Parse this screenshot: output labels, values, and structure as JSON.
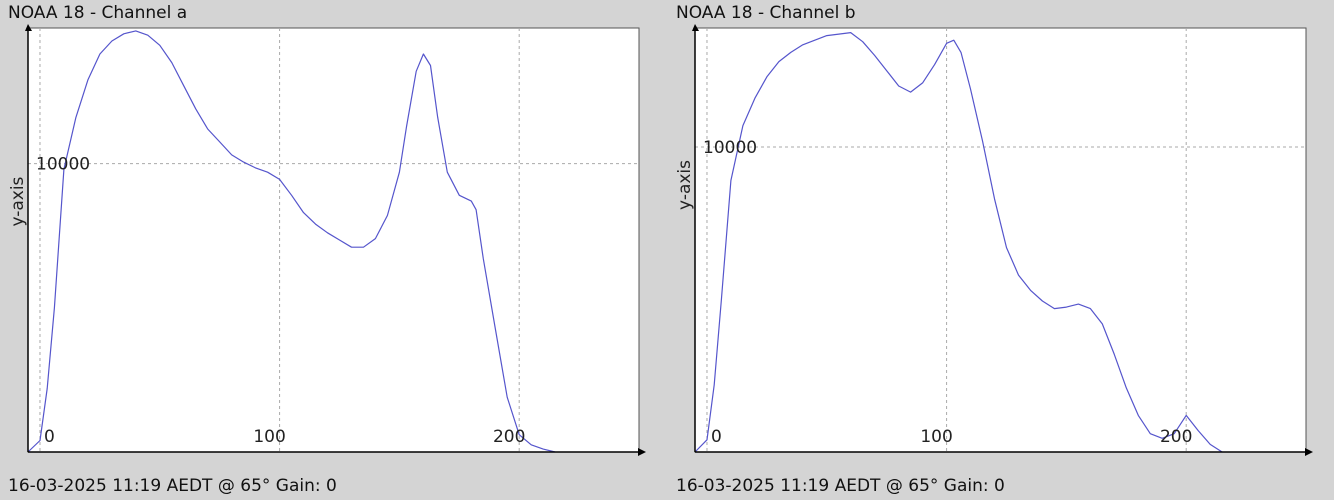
{
  "colors": {
    "background": "#d4d4d4",
    "plot_background": "#ffffff",
    "series_line": "#5555cc",
    "grid": "#aaaaaa",
    "axis": "#000000"
  },
  "chart_data": [
    {
      "type": "line",
      "title": "NOAA 18 - Channel a",
      "footer": "16-03-2025 11:19 AEDT @ 65° Gain: 0",
      "xlabel": "",
      "ylabel": "y-axis",
      "xlim": [
        -5,
        250
      ],
      "ylim": [
        0,
        14700
      ],
      "grid": true,
      "xticks": [
        0,
        100,
        200
      ],
      "xtick_labels": [
        "0",
        "100",
        "200"
      ],
      "yticks": [
        10000
      ],
      "ytick_labels": [
        "10000"
      ],
      "series": [
        {
          "x": [
            -5,
            0,
            3,
            6,
            10,
            15,
            20,
            25,
            30,
            35,
            40,
            45,
            50,
            55,
            60,
            65,
            70,
            75,
            80,
            85,
            90,
            95,
            100,
            105,
            110,
            115,
            120,
            125,
            130,
            135,
            140,
            145,
            150,
            153,
            157,
            160,
            163,
            166,
            170,
            175,
            180,
            182,
            185,
            190,
            195,
            200,
            205,
            210,
            215
          ],
          "y": [
            0,
            400,
            2200,
            5000,
            9800,
            11600,
            12900,
            13800,
            14250,
            14500,
            14600,
            14450,
            14100,
            13500,
            12700,
            11900,
            11200,
            10750,
            10300,
            10050,
            9850,
            9700,
            9450,
            8900,
            8300,
            7900,
            7600,
            7350,
            7100,
            7100,
            7400,
            8200,
            9700,
            11300,
            13200,
            13800,
            13400,
            11600,
            9700,
            8900,
            8700,
            8400,
            6700,
            4300,
            1900,
            600,
            250,
            100,
            0
          ]
        }
      ]
    },
    {
      "type": "line",
      "title": "NOAA 18 - Channel b",
      "footer": "16-03-2025 11:19 AEDT @ 65° Gain: 0",
      "xlabel": "",
      "ylabel": "y-axis",
      "xlim": [
        -5,
        250
      ],
      "ylim": [
        0,
        13900
      ],
      "grid": true,
      "xticks": [
        0,
        100,
        200
      ],
      "xtick_labels": [
        "0",
        "100",
        "200"
      ],
      "yticks": [
        10000
      ],
      "ytick_labels": [
        "10000"
      ],
      "series": [
        {
          "x": [
            -5,
            0,
            3,
            6,
            10,
            15,
            20,
            25,
            30,
            35,
            40,
            45,
            50,
            55,
            60,
            65,
            70,
            75,
            80,
            85,
            90,
            95,
            100,
            103,
            106,
            110,
            115,
            120,
            125,
            130,
            135,
            140,
            145,
            150,
            155,
            160,
            165,
            170,
            175,
            180,
            185,
            190,
            195,
            200,
            205,
            210,
            215
          ],
          "y": [
            0,
            400,
            2200,
            5000,
            8900,
            10700,
            11600,
            12300,
            12800,
            13100,
            13350,
            13500,
            13650,
            13700,
            13750,
            13450,
            13000,
            12500,
            12000,
            11800,
            12100,
            12700,
            13400,
            13500,
            13100,
            11900,
            10200,
            8300,
            6700,
            5800,
            5300,
            4950,
            4700,
            4750,
            4850,
            4700,
            4200,
            3200,
            2100,
            1200,
            600,
            450,
            600,
            1200,
            700,
            250,
            0
          ]
        }
      ]
    }
  ]
}
